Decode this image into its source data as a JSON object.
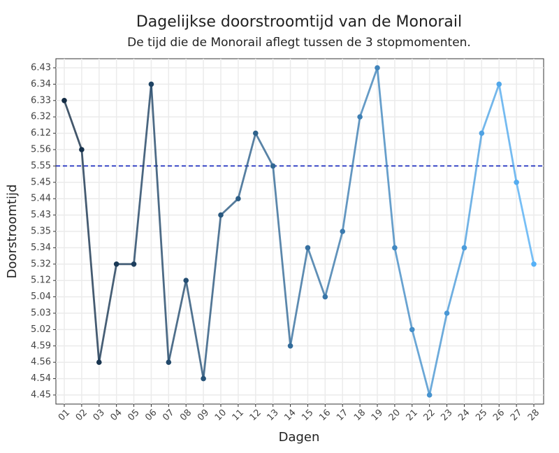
{
  "chart_data": {
    "type": "line",
    "title": "Dagelijkse doorstroomtijd van de Monorail",
    "subtitle": "De tijd die de Monorail aflegt tussen de 3 stopmomenten.",
    "x_label": "Dagen",
    "y_label": "Doorstroomtijd",
    "categories": [
      "01",
      "02",
      "03",
      "04",
      "05",
      "06",
      "07",
      "08",
      "09",
      "10",
      "11",
      "12",
      "13",
      "14",
      "15",
      "16",
      "17",
      "18",
      "19",
      "20",
      "21",
      "22",
      "23",
      "24",
      "25",
      "26",
      "27",
      "28"
    ],
    "values": [
      6.33,
      5.56,
      4.56,
      5.32,
      5.32,
      6.34,
      4.56,
      5.12,
      4.54,
      5.43,
      5.44,
      6.12,
      5.55,
      4.59,
      5.34,
      5.04,
      5.35,
      6.32,
      6.43,
      5.34,
      5.02,
      4.45,
      5.03,
      5.34,
      6.12,
      6.34,
      5.45,
      5.32
    ],
    "yticks": [
      4.45,
      4.54,
      4.56,
      4.59,
      5.02,
      5.03,
      5.04,
      5.12,
      5.32,
      5.34,
      5.35,
      5.43,
      5.44,
      5.45,
      5.55,
      5.56,
      6.12,
      6.32,
      6.33,
      6.34,
      6.43
    ],
    "y_scale": "categorical",
    "reference_line": 5.55,
    "reference_color": "#1f2fbf",
    "color_low": "#132b43",
    "color_high": "#56b1f7",
    "grid": true
  }
}
